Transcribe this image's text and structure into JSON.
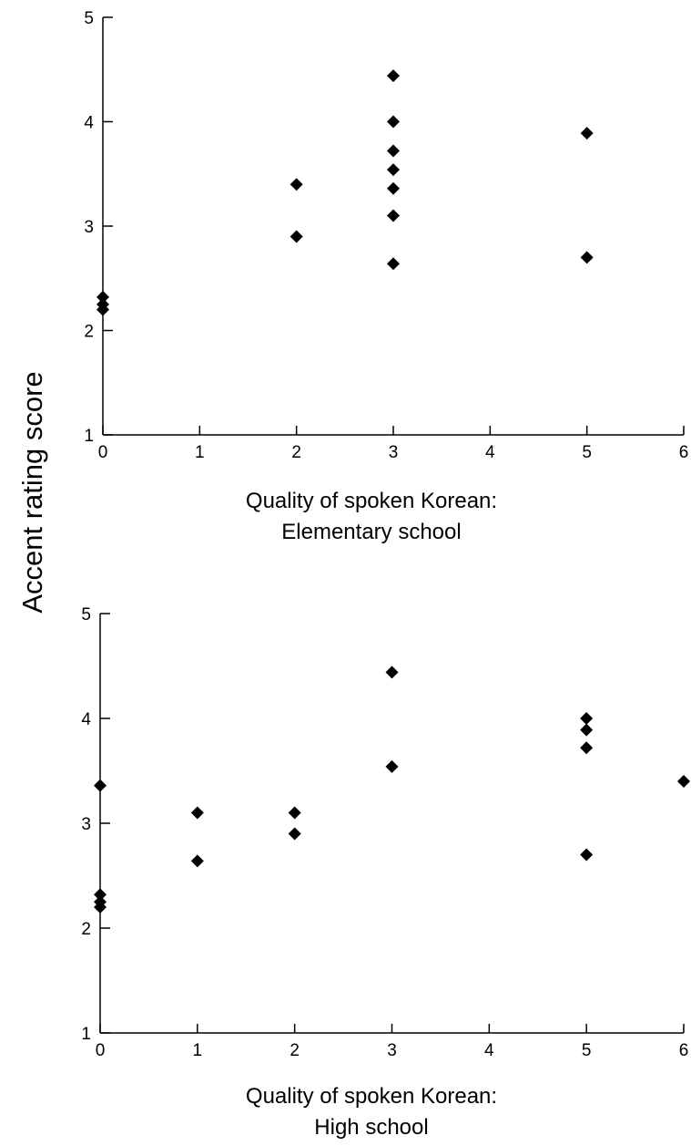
{
  "ylabel": "Accent rating score",
  "chart_data": [
    {
      "type": "scatter",
      "title": "",
      "xlabel_lines": [
        "Quality of spoken Korean:",
        "Elementary school"
      ],
      "ylabel": "Accent rating score",
      "xlim": [
        0,
        6
      ],
      "ylim": [
        1,
        5
      ],
      "xticks": [
        "0",
        "1",
        "2",
        "3",
        "4",
        "5",
        "6"
      ],
      "yticks": [
        "1",
        "2",
        "3",
        "4",
        "5"
      ],
      "grid": false,
      "marker": "diamond",
      "points": [
        {
          "x": 0,
          "y": 2.32
        },
        {
          "x": 0,
          "y": 2.25
        },
        {
          "x": 0,
          "y": 2.2
        },
        {
          "x": 2,
          "y": 3.4
        },
        {
          "x": 2,
          "y": 2.9
        },
        {
          "x": 3,
          "y": 4.44
        },
        {
          "x": 3,
          "y": 4.0
        },
        {
          "x": 3,
          "y": 3.72
        },
        {
          "x": 3,
          "y": 3.54
        },
        {
          "x": 3,
          "y": 3.36
        },
        {
          "x": 3,
          "y": 3.1
        },
        {
          "x": 3,
          "y": 2.64
        },
        {
          "x": 5,
          "y": 3.89
        },
        {
          "x": 5,
          "y": 2.7
        }
      ]
    },
    {
      "type": "scatter",
      "title": "",
      "xlabel_lines": [
        "Quality of spoken Korean:",
        "High school"
      ],
      "ylabel": "Accent rating score",
      "xlim": [
        0,
        6
      ],
      "ylim": [
        1,
        5
      ],
      "xticks": [
        "0",
        "1",
        "2",
        "3",
        "4",
        "5",
        "6"
      ],
      "yticks": [
        "1",
        "2",
        "3",
        "4",
        "5"
      ],
      "grid": false,
      "marker": "diamond",
      "points": [
        {
          "x": 0,
          "y": 3.36
        },
        {
          "x": 0,
          "y": 2.32
        },
        {
          "x": 0,
          "y": 2.25
        },
        {
          "x": 0,
          "y": 2.2
        },
        {
          "x": 1,
          "y": 3.1
        },
        {
          "x": 1,
          "y": 2.64
        },
        {
          "x": 2,
          "y": 3.1
        },
        {
          "x": 2,
          "y": 2.9
        },
        {
          "x": 3,
          "y": 4.44
        },
        {
          "x": 3,
          "y": 3.54
        },
        {
          "x": 5,
          "y": 4.0
        },
        {
          "x": 5,
          "y": 3.89
        },
        {
          "x": 5,
          "y": 3.72
        },
        {
          "x": 5,
          "y": 2.7
        },
        {
          "x": 6,
          "y": 3.4
        }
      ]
    }
  ]
}
